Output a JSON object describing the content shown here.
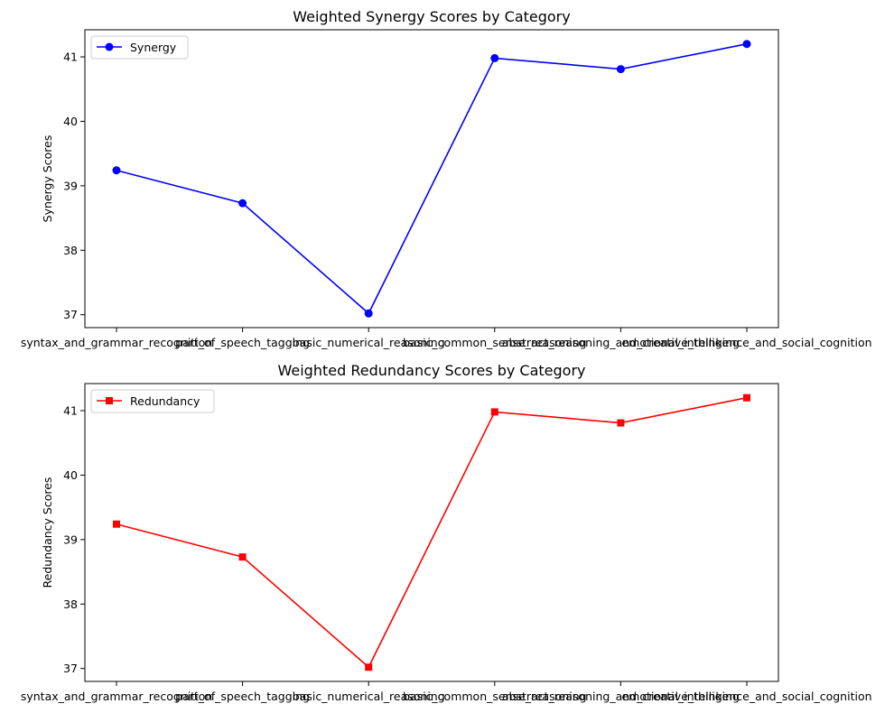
{
  "chart_data": [
    {
      "type": "line",
      "title": "Weighted Synergy Scores by Category",
      "xlabel": "",
      "ylabel": "Synergy Scores",
      "categories": [
        "syntax_and_grammar_recognition",
        "part_of_speech_tagging",
        "basic_numerical_reasoning",
        "basic_common_sense_reasoning",
        "abstract_reasoning_and_creative_thinking",
        "emotional_intelligence_and_social_cognition"
      ],
      "series": [
        {
          "name": "Synergy",
          "color": "#0000ff",
          "marker": "circle",
          "values": [
            39.24,
            38.73,
            37.02,
            40.98,
            40.81,
            41.2
          ]
        }
      ],
      "ylim": [
        36.8,
        41.42
      ],
      "yticks": [
        37,
        38,
        39,
        40,
        41
      ],
      "grid": false,
      "legend": "top-left"
    },
    {
      "type": "line",
      "title": "Weighted Redundancy Scores by Category",
      "xlabel": "",
      "ylabel": "Redundancy Scores",
      "categories": [
        "syntax_and_grammar_recognition",
        "part_of_speech_tagging",
        "basic_numerical_reasoning",
        "basic_common_sense_reasoning",
        "abstract_reasoning_and_creative_thinking",
        "emotional_intelligence_and_social_cognition"
      ],
      "series": [
        {
          "name": "Redundancy",
          "color": "#ff0000",
          "marker": "square",
          "values": [
            39.24,
            38.73,
            37.02,
            40.98,
            40.81,
            41.2
          ]
        }
      ],
      "ylim": [
        36.8,
        41.42
      ],
      "yticks": [
        37,
        38,
        39,
        40,
        41
      ],
      "grid": false,
      "legend": "top-left"
    }
  ]
}
